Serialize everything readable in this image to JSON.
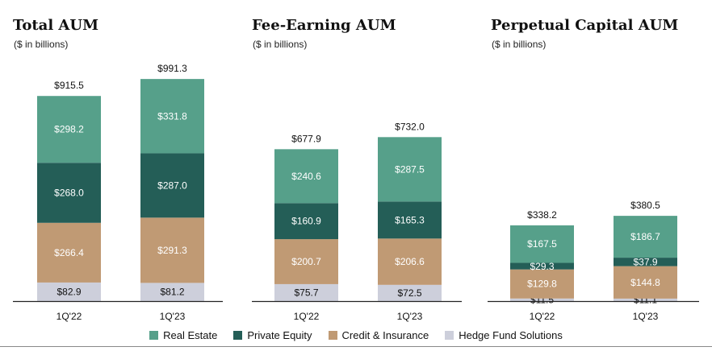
{
  "chart_data": [
    {
      "type": "bar",
      "stacked": true,
      "title": "Total AUM",
      "subtitle": "($ in billions)",
      "categories": [
        "1Q'22",
        "1Q'23"
      ],
      "series": [
        {
          "name": "Hedge Fund Solutions",
          "values": [
            82.9,
            81.2
          ],
          "labels": [
            "$82.9",
            "$81.2"
          ]
        },
        {
          "name": "Credit & Insurance",
          "values": [
            266.4,
            291.3
          ],
          "labels": [
            "$266.4",
            "$291.3"
          ]
        },
        {
          "name": "Private Equity",
          "values": [
            268.0,
            287.0
          ],
          "labels": [
            "$268.0",
            "$287.0"
          ]
        },
        {
          "name": "Real Estate",
          "values": [
            298.2,
            331.8
          ],
          "labels": [
            "$298.2",
            "$331.8"
          ]
        }
      ],
      "totals": [
        915.5,
        991.3
      ],
      "total_labels": [
        "$915.5",
        "$991.3"
      ]
    },
    {
      "type": "bar",
      "stacked": true,
      "title": "Fee-Earning AUM",
      "subtitle": "($ in billions)",
      "categories": [
        "1Q'22",
        "1Q'23"
      ],
      "series": [
        {
          "name": "Hedge Fund Solutions",
          "values": [
            75.7,
            72.5
          ],
          "labels": [
            "$75.7",
            "$72.5"
          ]
        },
        {
          "name": "Credit & Insurance",
          "values": [
            200.7,
            206.6
          ],
          "labels": [
            "$200.7",
            "$206.6"
          ]
        },
        {
          "name": "Private Equity",
          "values": [
            160.9,
            165.3
          ],
          "labels": [
            "$160.9",
            "$165.3"
          ]
        },
        {
          "name": "Real Estate",
          "values": [
            240.6,
            287.5
          ],
          "labels": [
            "$240.6",
            "$287.5"
          ]
        }
      ],
      "totals": [
        677.9,
        732.0
      ],
      "total_labels": [
        "$677.9",
        "$732.0"
      ]
    },
    {
      "type": "bar",
      "stacked": true,
      "title": "Perpetual Capital AUM",
      "subtitle": "($ in billions)",
      "categories": [
        "1Q'22",
        "1Q'23"
      ],
      "series": [
        {
          "name": "Hedge Fund Solutions",
          "values": [
            11.5,
            11.1
          ],
          "labels": [
            "$11.5",
            "$11.1"
          ]
        },
        {
          "name": "Credit & Insurance",
          "values": [
            129.8,
            144.8
          ],
          "labels": [
            "$129.8",
            "$144.8"
          ]
        },
        {
          "name": "Private Equity",
          "values": [
            29.3,
            37.9
          ],
          "labels": [
            "$29.3",
            "$37.9"
          ]
        },
        {
          "name": "Real Estate",
          "values": [
            167.5,
            186.7
          ],
          "labels": [
            "$167.5",
            "$186.7"
          ]
        }
      ],
      "totals": [
        338.2,
        380.5
      ],
      "total_labels": [
        "$338.2",
        "$380.5"
      ]
    }
  ],
  "legend": [
    {
      "name": "Real Estate",
      "color": "#56a08a"
    },
    {
      "name": "Private Equity",
      "color": "#245e57"
    },
    {
      "name": "Credit & Insurance",
      "color": "#c09a74"
    },
    {
      "name": "Hedge Fund Solutions",
      "color": "#cdcfdb"
    }
  ],
  "series_colors": {
    "Real Estate": "#56a08a",
    "Private Equity": "#245e57",
    "Credit & Insurance": "#c09a74",
    "Hedge Fund Solutions": "#cdcfdb"
  },
  "label_colors": {
    "Real Estate": "#ffffff",
    "Private Equity": "#ffffff",
    "Credit & Insurance": "#ffffff",
    "Hedge Fund Solutions": "#111111"
  }
}
